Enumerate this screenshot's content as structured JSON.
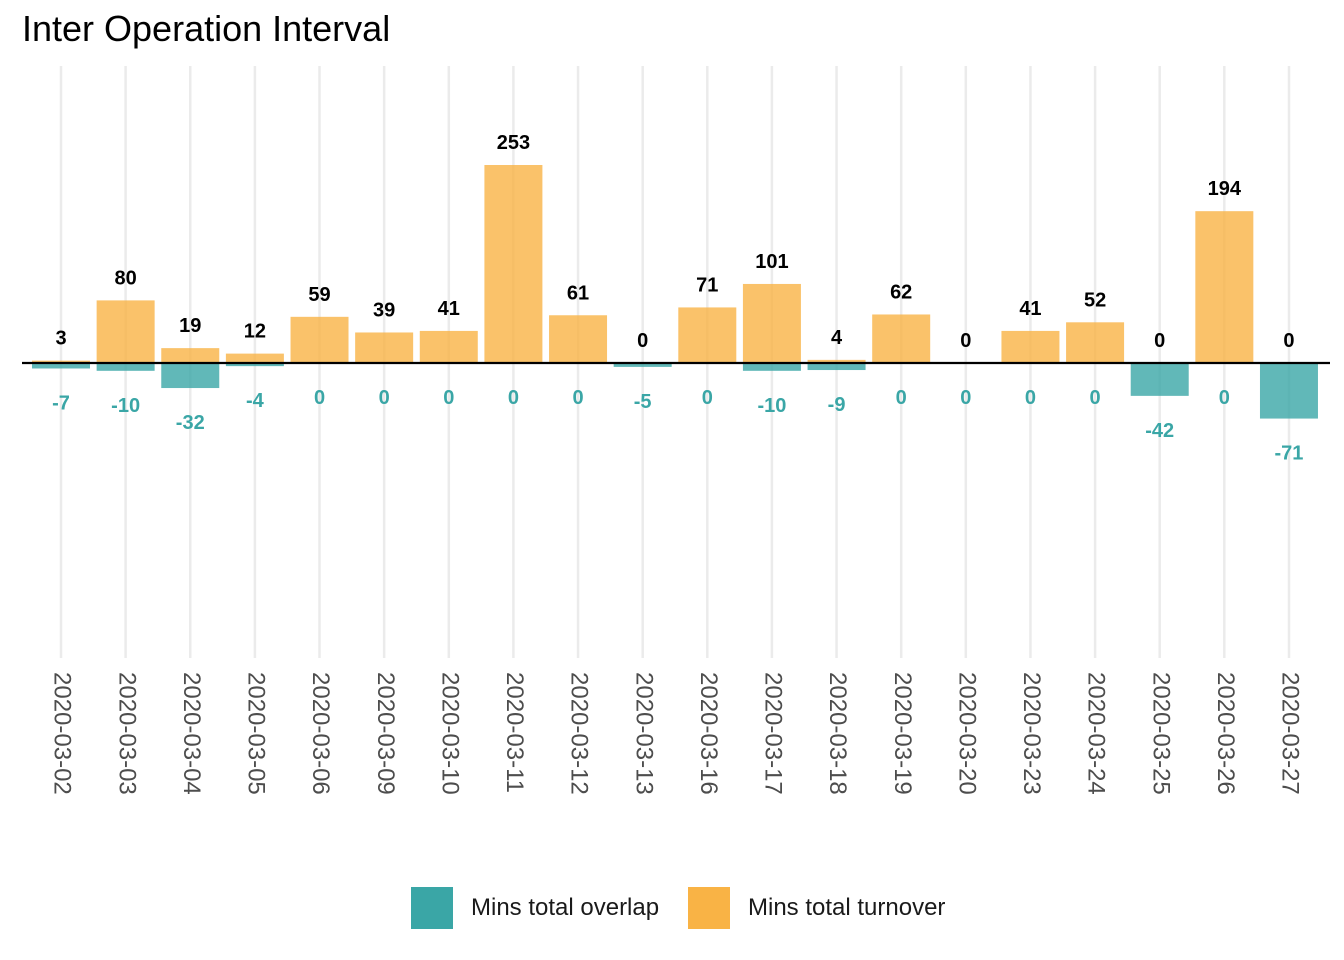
{
  "chart_data": {
    "type": "bar",
    "title": "Inter Operation Interval",
    "xlabel": "",
    "ylabel": "",
    "categories": [
      "2020-03-02",
      "2020-03-03",
      "2020-03-04",
      "2020-03-05",
      "2020-03-06",
      "2020-03-09",
      "2020-03-10",
      "2020-03-11",
      "2020-03-12",
      "2020-03-13",
      "2020-03-16",
      "2020-03-17",
      "2020-03-18",
      "2020-03-19",
      "2020-03-20",
      "2020-03-23",
      "2020-03-24",
      "2020-03-25",
      "2020-03-26",
      "2020-03-27"
    ],
    "series": [
      {
        "name": "Mins total overlap",
        "color": "#3AA6A6",
        "values": [
          -7,
          -10,
          -32,
          -4,
          0,
          0,
          0,
          0,
          0,
          -5,
          0,
          -10,
          -9,
          0,
          0,
          0,
          0,
          -42,
          0,
          -71
        ]
      },
      {
        "name": "Mins total turnover",
        "color": "#F9B345",
        "values": [
          3,
          80,
          19,
          12,
          59,
          39,
          41,
          253,
          61,
          0,
          71,
          101,
          4,
          62,
          0,
          41,
          52,
          0,
          194,
          0
        ]
      }
    ],
    "ylim": [
      -375,
      375
    ],
    "grid": "vertical",
    "legend_position": "bottom"
  },
  "legend": {
    "items": [
      {
        "label": "Mins total overlap",
        "color": "#3AA6A6"
      },
      {
        "label": "Mins total turnover",
        "color": "#F9B345"
      }
    ]
  }
}
